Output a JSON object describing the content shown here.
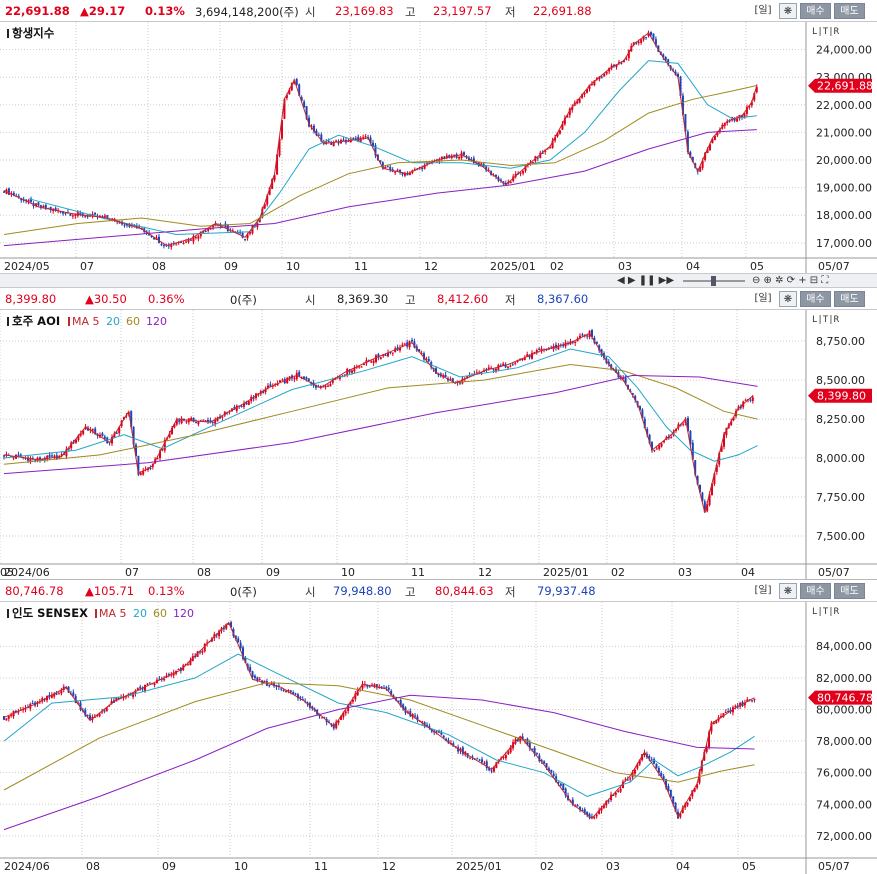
{
  "panels": [
    {
      "id": "hsi",
      "quote": {
        "price": "22,691.88",
        "change": "▲29.17",
        "pct": "0.13%",
        "volume": "3,694,148,200(주)",
        "open_label": "시",
        "open": "23,169.83",
        "high_label": "고",
        "high": "23,197.57",
        "low_label": "저",
        "low": "22,691.88"
      },
      "buttons": {
        "period": "[일]",
        "gear": "❋",
        "buy": "매수",
        "sell": "매도"
      },
      "title": "항생지수",
      "ma_legend": [],
      "price_tag": "22,691.88",
      "lt_label": "L|T|R",
      "date_label": "05/07"
    },
    {
      "id": "aoi",
      "quote": {
        "price": "8,399.80",
        "change": "▲30.50",
        "pct": "0.36%",
        "volume": "0(주)",
        "open_label": "시",
        "open": "8,369.30",
        "high_label": "고",
        "high": "8,412.60",
        "low_label": "저",
        "low": "8,367.60"
      },
      "buttons": {
        "period": "[일]",
        "gear": "❋",
        "buy": "매수",
        "sell": "매도"
      },
      "title": "호주 AOI",
      "ma_legend": [
        {
          "text": "MA 5",
          "color": "#c1272d"
        },
        {
          "text": "20",
          "color": "#22a6c9"
        },
        {
          "text": "60",
          "color": "#a08a1f"
        },
        {
          "text": "120",
          "color": "#8a1fc2"
        }
      ],
      "price_tag": "8,399.80",
      "lt_label": "L|T|R",
      "date_label": "05/07"
    },
    {
      "id": "sensex",
      "quote": {
        "price": "80,746.78",
        "change": "▲105.71",
        "pct": "0.13%",
        "volume": "0(주)",
        "open_label": "시",
        "open": "79,948.80",
        "high_label": "고",
        "high": "80,844.63",
        "low_label": "저",
        "low": "79,937.48"
      },
      "buttons": {
        "period": "[일]",
        "gear": "❋",
        "buy": "매수",
        "sell": "매도"
      },
      "title": "인도 SENSEX",
      "ma_legend": [
        {
          "text": "MA 5",
          "color": "#c1272d"
        },
        {
          "text": "20",
          "color": "#22a6c9"
        },
        {
          "text": "60",
          "color": "#a08a1f"
        },
        {
          "text": "120",
          "color": "#8a1fc2"
        }
      ],
      "price_tag": "80,746.78",
      "lt_label": "L|T|R",
      "date_label": "05/07"
    }
  ],
  "scrollbar": {
    "controls": "◀ ▶ ❚❚ ▶▶"
  },
  "chart_data": [
    {
      "type": "candlestick",
      "title": "항생지수",
      "x_labels": [
        "2024/05",
        "07",
        "08",
        "09",
        "10",
        "11",
        "12",
        "2025/01",
        "02",
        "03",
        "04",
        "05"
      ],
      "y_ticks": [
        17000,
        18000,
        19000,
        20000,
        21000,
        22000,
        23000,
        24000
      ],
      "y_tick_labels": [
        "17,000.00",
        "18,000.00",
        "19,000.00",
        "20,000.00",
        "21,000.00",
        "22,000.00",
        "23,000.00",
        "24,000.00"
      ],
      "ylim": [
        16450,
        25000
      ],
      "close_path": [
        [
          0,
          18900
        ],
        [
          14,
          18300
        ],
        [
          28,
          18050
        ],
        [
          42,
          17900
        ],
        [
          56,
          17500
        ],
        [
          66,
          16900
        ],
        [
          76,
          17150
        ],
        [
          86,
          17700
        ],
        [
          98,
          17200
        ],
        [
          104,
          17900
        ],
        [
          110,
          19500
        ],
        [
          114,
          22200
        ],
        [
          118,
          22900
        ],
        [
          124,
          21300
        ],
        [
          130,
          20600
        ],
        [
          140,
          20700
        ],
        [
          148,
          20800
        ],
        [
          154,
          19700
        ],
        [
          164,
          19500
        ],
        [
          176,
          20000
        ],
        [
          186,
          20200
        ],
        [
          194,
          19800
        ],
        [
          204,
          19100
        ],
        [
          214,
          19900
        ],
        [
          222,
          20500
        ],
        [
          230,
          21800
        ],
        [
          238,
          22700
        ],
        [
          246,
          23300
        ],
        [
          252,
          23600
        ],
        [
          256,
          24200
        ],
        [
          262,
          24600
        ],
        [
          268,
          23700
        ],
        [
          274,
          23000
        ],
        [
          278,
          20300
        ],
        [
          282,
          19600
        ],
        [
          288,
          20800
        ],
        [
          294,
          21400
        ],
        [
          300,
          21600
        ],
        [
          304,
          22100
        ],
        [
          306,
          22691.88
        ]
      ],
      "ma": {
        "20": {
          "color": "#22a6c9",
          "path": [
            [
              10,
              18600
            ],
            [
              40,
              17900
            ],
            [
              70,
              17300
            ],
            [
              100,
              17400
            ],
            [
              112,
              18800
            ],
            [
              124,
              20400
            ],
            [
              136,
              20900
            ],
            [
              150,
              20500
            ],
            [
              166,
              19900
            ],
            [
              186,
              19900
            ],
            [
              206,
              19700
            ],
            [
              222,
              20000
            ],
            [
              236,
              21000
            ],
            [
              250,
              22500
            ],
            [
              262,
              23600
            ],
            [
              274,
              23500
            ],
            [
              286,
              22000
            ],
            [
              296,
              21500
            ],
            [
              306,
              21600
            ]
          ]
        },
        "60": {
          "color": "#a08a1f",
          "path": [
            [
              0,
              17300
            ],
            [
              30,
              17700
            ],
            [
              56,
              17900
            ],
            [
              80,
              17600
            ],
            [
              100,
              17700
            ],
            [
              120,
              18700
            ],
            [
              140,
              19500
            ],
            [
              160,
              19900
            ],
            [
              186,
              20000
            ],
            [
              206,
              19800
            ],
            [
              224,
              19900
            ],
            [
              244,
              20700
            ],
            [
              262,
              21700
            ],
            [
              280,
              22200
            ],
            [
              296,
              22500
            ],
            [
              306,
              22700
            ]
          ]
        },
        "120": {
          "color": "#8a1fc2",
          "path": [
            [
              0,
              16900
            ],
            [
              40,
              17200
            ],
            [
              80,
              17500
            ],
            [
              110,
              17700
            ],
            [
              140,
              18300
            ],
            [
              176,
              18800
            ],
            [
              206,
              19100
            ],
            [
              236,
              19600
            ],
            [
              262,
              20400
            ],
            [
              286,
              21000
            ],
            [
              306,
              21100
            ]
          ]
        }
      }
    },
    {
      "type": "candlestick",
      "title": "호주 AOI",
      "x_labels": [
        "2024/06",
        "07",
        "08",
        "09",
        "10",
        "11",
        "12",
        "2025/01",
        "02",
        "03",
        "04",
        "05"
      ],
      "y_ticks": [
        7500,
        7750,
        8000,
        8250,
        8500,
        8750
      ],
      "y_tick_labels": [
        "7,500.00",
        "7,750.00",
        "8,000.00",
        "8,250.00",
        "8,500.00",
        "8,750.00"
      ],
      "ylim": [
        7320,
        8950
      ],
      "close_path": [
        [
          0,
          8020
        ],
        [
          14,
          7990
        ],
        [
          24,
          8010
        ],
        [
          34,
          8200
        ],
        [
          44,
          8100
        ],
        [
          52,
          8300
        ],
        [
          56,
          7900
        ],
        [
          62,
          7950
        ],
        [
          72,
          8250
        ],
        [
          86,
          8230
        ],
        [
          100,
          8350
        ],
        [
          110,
          8450
        ],
        [
          122,
          8530
        ],
        [
          132,
          8450
        ],
        [
          142,
          8550
        ],
        [
          156,
          8650
        ],
        [
          170,
          8740
        ],
        [
          180,
          8550
        ],
        [
          188,
          8480
        ],
        [
          200,
          8560
        ],
        [
          210,
          8600
        ],
        [
          224,
          8690
        ],
        [
          236,
          8740
        ],
        [
          244,
          8800
        ],
        [
          252,
          8600
        ],
        [
          258,
          8500
        ],
        [
          264,
          8350
        ],
        [
          270,
          8050
        ],
        [
          278,
          8150
        ],
        [
          284,
          8250
        ],
        [
          288,
          7900
        ],
        [
          292,
          7650
        ],
        [
          296,
          7900
        ],
        [
          300,
          8150
        ],
        [
          306,
          8320
        ],
        [
          312,
          8400
        ]
      ],
      "ma": {
        "20": {
          "color": "#22a6c9",
          "path": [
            [
              0,
              8000
            ],
            [
              30,
              8050
            ],
            [
              50,
              8150
            ],
            [
              66,
              8060
            ],
            [
              90,
              8230
            ],
            [
              120,
              8440
            ],
            [
              150,
              8560
            ],
            [
              170,
              8650
            ],
            [
              190,
              8520
            ],
            [
              214,
              8580
            ],
            [
              236,
              8700
            ],
            [
              252,
              8650
            ],
            [
              264,
              8450
            ],
            [
              276,
              8200
            ],
            [
              286,
              8050
            ],
            [
              296,
              7980
            ],
            [
              306,
              8020
            ],
            [
              314,
              8080
            ]
          ]
        },
        "60": {
          "color": "#a08a1f",
          "path": [
            [
              0,
              7960
            ],
            [
              40,
              8020
            ],
            [
              80,
              8150
            ],
            [
              120,
              8300
            ],
            [
              160,
              8450
            ],
            [
              200,
              8500
            ],
            [
              236,
              8600
            ],
            [
              258,
              8560
            ],
            [
              280,
              8450
            ],
            [
              300,
              8300
            ],
            [
              314,
              8250
            ]
          ]
        },
        "120": {
          "color": "#8a1fc2",
          "path": [
            [
              0,
              7900
            ],
            [
              60,
              7970
            ],
            [
              120,
              8100
            ],
            [
              180,
              8290
            ],
            [
              230,
              8420
            ],
            [
              262,
              8530
            ],
            [
              290,
              8520
            ],
            [
              314,
              8460
            ]
          ]
        }
      }
    },
    {
      "type": "candlestick",
      "title": "인도 SENSEX",
      "x_labels": [
        "2024/06",
        "08",
        "09",
        "10",
        "11",
        "12",
        "2025/01",
        "02",
        "03",
        "04",
        "05"
      ],
      "y_ticks": [
        72000,
        74000,
        76000,
        78000,
        80000,
        82000,
        84000
      ],
      "y_tick_labels": [
        "72,000.00",
        "74,000.00",
        "76,000.00",
        "78,000.00",
        "80,000.00",
        "82,000.00",
        "84,000.00"
      ],
      "ylim": [
        70600,
        86800
      ],
      "close_path": [
        [
          0,
          79500
        ],
        [
          14,
          80400
        ],
        [
          26,
          81400
        ],
        [
          36,
          79300
        ],
        [
          46,
          80500
        ],
        [
          60,
          81500
        ],
        [
          74,
          82500
        ],
        [
          88,
          84600
        ],
        [
          94,
          85500
        ],
        [
          98,
          84100
        ],
        [
          104,
          81900
        ],
        [
          116,
          81400
        ],
        [
          126,
          80500
        ],
        [
          138,
          78900
        ],
        [
          150,
          81600
        ],
        [
          160,
          81300
        ],
        [
          168,
          79900
        ],
        [
          180,
          78600
        ],
        [
          190,
          77500
        ],
        [
          204,
          76200
        ],
        [
          216,
          78300
        ],
        [
          226,
          76500
        ],
        [
          238,
          74000
        ],
        [
          246,
          73100
        ],
        [
          256,
          74800
        ],
        [
          262,
          75800
        ],
        [
          268,
          77300
        ],
        [
          276,
          75500
        ],
        [
          282,
          73200
        ],
        [
          290,
          75300
        ],
        [
          296,
          79100
        ],
        [
          306,
          80100
        ],
        [
          314,
          80746.78
        ]
      ],
      "ma": {
        "20": {
          "color": "#22a6c9",
          "path": [
            [
              0,
              78000
            ],
            [
              20,
              80400
            ],
            [
              50,
              80800
            ],
            [
              80,
              82000
            ],
            [
              98,
              83500
            ],
            [
              114,
              82300
            ],
            [
              140,
              80400
            ],
            [
              160,
              79800
            ],
            [
              186,
              78400
            ],
            [
              206,
              76800
            ],
            [
              226,
              76000
            ],
            [
              244,
              74500
            ],
            [
              262,
              75400
            ],
            [
              272,
              76800
            ],
            [
              282,
              75800
            ],
            [
              292,
              76400
            ],
            [
              304,
              77300
            ],
            [
              314,
              78300
            ]
          ]
        },
        "60": {
          "color": "#a08a1f",
          "path": [
            [
              0,
              74900
            ],
            [
              40,
              78200
            ],
            [
              80,
              80500
            ],
            [
              110,
              81700
            ],
            [
              140,
              81500
            ],
            [
              170,
              80600
            ],
            [
              200,
              79000
            ],
            [
              230,
              77400
            ],
            [
              256,
              76000
            ],
            [
              282,
              75400
            ],
            [
              300,
              76100
            ],
            [
              314,
              76500
            ]
          ]
        },
        "120": {
          "color": "#8a1fc2",
          "path": [
            [
              0,
              72400
            ],
            [
              40,
              74500
            ],
            [
              80,
              76800
            ],
            [
              110,
              78800
            ],
            [
              140,
              80000
            ],
            [
              170,
              80900
            ],
            [
              200,
              80600
            ],
            [
              230,
              79800
            ],
            [
              260,
              78600
            ],
            [
              290,
              77600
            ],
            [
              314,
              77500
            ]
          ]
        }
      }
    }
  ]
}
